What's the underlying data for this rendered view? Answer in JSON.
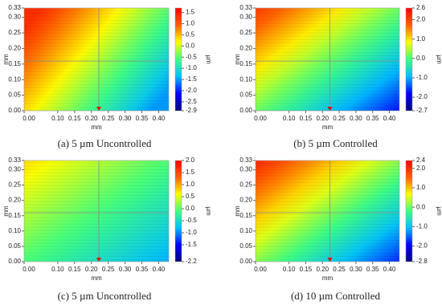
{
  "chart_data": [
    {
      "type": "heatmap",
      "title": "(a) 5 µm Uncontrolled",
      "xlabel": "mm",
      "ylabel": "mm",
      "xlim": [
        0,
        0.43
      ],
      "xticks": [
        {
          "value": 0,
          "label": "0.00"
        },
        {
          "value": 0.1,
          "label": "0.10"
        },
        {
          "value": 0.15,
          "label": "0.15"
        },
        {
          "value": 0.2,
          "label": "0.20"
        },
        {
          "value": 0.25,
          "label": "0.25"
        },
        {
          "value": 0.3,
          "label": "0.30"
        },
        {
          "value": 0.35,
          "label": "0.35"
        },
        {
          "value": 0.4,
          "label": "0.40"
        }
      ],
      "ylim": [
        0,
        0.33
      ],
      "yticks": [
        {
          "value": 0,
          "label": "0.00"
        },
        {
          "value": 0.05,
          "label": "0.05"
        },
        {
          "value": 0.1,
          "label": "0.10"
        },
        {
          "value": 0.15,
          "label": "0.15"
        },
        {
          "value": 0.2,
          "label": "0.20"
        },
        {
          "value": 0.25,
          "label": "0.25"
        },
        {
          "value": 0.3,
          "label": "0.30"
        },
        {
          "value": 0.33,
          "label": "0.33"
        }
      ],
      "colorbar": {
        "label": "µm",
        "lim": [
          -2.9,
          1.7
        ],
        "ticks": [
          1.5,
          {
            "value": 1,
            "label": "1.0"
          },
          0.5,
          {
            "value": 0,
            "label": "0.0"
          },
          -0.5,
          {
            "value": -1,
            "label": "-1.0"
          },
          -1.5,
          {
            "value": -2,
            "label": "-2.0"
          },
          -2.5,
          -2.9
        ]
      },
      "colormap": [
        "#000080",
        "#0000ff",
        "#00c0ff",
        "#40ff80",
        "#ffff00",
        "#ff6000",
        "#ff0000"
      ]
    },
    {
      "type": "heatmap",
      "title": "(b) 5 µm Controlled",
      "xlabel": "mm",
      "ylabel": "mm",
      "xlim": [
        0,
        0.43
      ],
      "xticks": [
        {
          "value": 0,
          "label": "0.00"
        },
        {
          "value": 0.1,
          "label": "0.10"
        },
        {
          "value": 0.15,
          "label": "0.15"
        },
        {
          "value": 0.2,
          "label": "0.20"
        },
        {
          "value": 0.25,
          "label": "0.25"
        },
        {
          "value": 0.3,
          "label": "0.30"
        },
        {
          "value": 0.35,
          "label": "0.35"
        },
        {
          "value": 0.4,
          "label": "0.40"
        }
      ],
      "ylim": [
        0,
        0.33
      ],
      "yticks": [
        {
          "value": 0,
          "label": "0.00"
        },
        {
          "value": 0.05,
          "label": "0.05"
        },
        {
          "value": 0.1,
          "label": "0.10"
        },
        {
          "value": 0.15,
          "label": "0.15"
        },
        {
          "value": 0.2,
          "label": "0.20"
        },
        {
          "value": 0.25,
          "label": "0.25"
        },
        {
          "value": 0.3,
          "label": "0.30"
        },
        {
          "value": 0.33,
          "label": "0.33"
        }
      ],
      "colorbar": {
        "label": "µm",
        "lim": [
          -2.7,
          2.6
        ],
        "ticks": [
          2.6,
          {
            "value": 2,
            "label": "2.0"
          },
          {
            "value": 1,
            "label": "1.0"
          },
          {
            "value": 0,
            "label": "0.0"
          },
          {
            "value": -1,
            "label": "-1.0"
          },
          {
            "value": -2,
            "label": "-2.0"
          },
          -2.7
        ]
      },
      "colormap": [
        "#000080",
        "#0000ff",
        "#00c0ff",
        "#40ff80",
        "#ffff00",
        "#ff6000",
        "#ff0000"
      ]
    },
    {
      "type": "heatmap",
      "title": "(c) 5 µm Uncontrolled",
      "xlabel": "mm",
      "ylabel": "mm",
      "xlim": [
        0,
        0.43
      ],
      "xticks": [
        {
          "value": 0,
          "label": "0.00"
        },
        {
          "value": 0.1,
          "label": "0.10"
        },
        {
          "value": 0.15,
          "label": "0.15"
        },
        {
          "value": 0.2,
          "label": "0.20"
        },
        {
          "value": 0.25,
          "label": "0.25"
        },
        {
          "value": 0.3,
          "label": "0.30"
        },
        {
          "value": 0.35,
          "label": "0.35"
        },
        {
          "value": 0.4,
          "label": "0.40"
        }
      ],
      "ylim": [
        0,
        0.33
      ],
      "yticks": [
        {
          "value": 0,
          "label": "0.00"
        },
        {
          "value": 0.05,
          "label": "0.05"
        },
        {
          "value": 0.1,
          "label": "0.10"
        },
        {
          "value": 0.15,
          "label": "0.15"
        },
        {
          "value": 0.2,
          "label": "0.20"
        },
        {
          "value": 0.25,
          "label": "0.25"
        },
        {
          "value": 0.3,
          "label": "0.30"
        },
        {
          "value": 0.33,
          "label": "0.33"
        }
      ],
      "colorbar": {
        "label": "µm",
        "lim": [
          -2.2,
          2.0
        ],
        "ticks": [
          {
            "value": 2,
            "label": "2.0"
          },
          1.5,
          {
            "value": 1,
            "label": "1.0"
          },
          0.5,
          {
            "value": 0,
            "label": "0.0"
          },
          -0.5,
          {
            "value": -1,
            "label": "-1.0"
          },
          -1.5,
          -2.2
        ]
      },
      "colormap": [
        "#000080",
        "#0000ff",
        "#00c0ff",
        "#40ff80",
        "#ffff00",
        "#ff6000",
        "#ff0000"
      ]
    },
    {
      "type": "heatmap",
      "title": "(d) 10 µm Controlled",
      "xlabel": "mm",
      "ylabel": "mm",
      "xlim": [
        0,
        0.43
      ],
      "xticks": [
        {
          "value": 0,
          "label": "0.00"
        },
        {
          "value": 0.1,
          "label": "0.10"
        },
        {
          "value": 0.15,
          "label": "0.15"
        },
        {
          "value": 0.2,
          "label": "0.20"
        },
        {
          "value": 0.25,
          "label": "0.25"
        },
        {
          "value": 0.3,
          "label": "0.30"
        },
        {
          "value": 0.35,
          "label": "0.35"
        },
        {
          "value": 0.4,
          "label": "0.40"
        }
      ],
      "ylim": [
        0,
        0.33
      ],
      "yticks": [
        {
          "value": 0,
          "label": "0.00"
        },
        {
          "value": 0.05,
          "label": "0.05"
        },
        {
          "value": 0.1,
          "label": "0.10"
        },
        {
          "value": 0.15,
          "label": "0.15"
        },
        {
          "value": 0.2,
          "label": "0.20"
        },
        {
          "value": 0.25,
          "label": "0.25"
        },
        {
          "value": 0.3,
          "label": "0.30"
        },
        {
          "value": 0.33,
          "label": "0.33"
        }
      ],
      "colorbar": {
        "label": "µm",
        "lim": [
          -2.8,
          2.4
        ],
        "ticks": [
          2.4,
          {
            "value": 2,
            "label": "2.0"
          },
          {
            "value": 1,
            "label": "1.0"
          },
          {
            "value": 0,
            "label": "0.0"
          },
          {
            "value": -1,
            "label": "-1.0"
          },
          {
            "value": -2,
            "label": "-2.0"
          },
          -2.8
        ]
      },
      "colormap": [
        "#000080",
        "#0000ff",
        "#00c0ff",
        "#40ff80",
        "#ffff00",
        "#ff6000",
        "#ff0000"
      ]
    }
  ]
}
